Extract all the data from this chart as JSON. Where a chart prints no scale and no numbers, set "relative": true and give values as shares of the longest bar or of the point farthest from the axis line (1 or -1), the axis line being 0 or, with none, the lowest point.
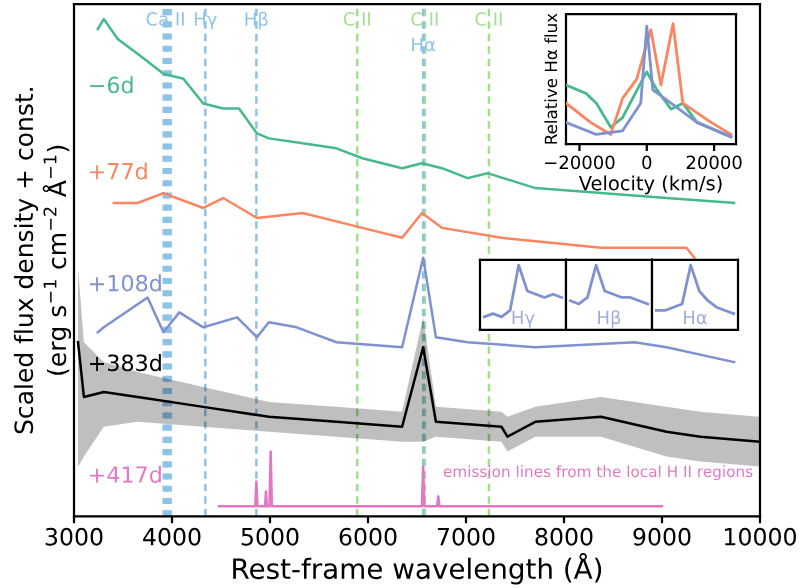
{
  "chart_data": [
    {
      "type": "line",
      "xlabel": "Rest-frame wavelength (Å)",
      "ylabel": "Scaled flux density + const.\n(erg s$^{−1}$ cm$^{−2}$ Å$^{−1}$)",
      "relative": true,
      "tick_labels": "x",
      "xlim": [
        3000,
        10000
      ],
      "xticks": [
        3000,
        4000,
        5000,
        6000,
        7000,
        8000,
        9000,
        10000
      ],
      "series": [
        {
          "name": "−6d",
          "color": "#45b98c",
          "x": [
            3243,
            3304,
            3446,
            3649,
            3913,
            4116,
            4319,
            4522,
            4684,
            4867,
            4988,
            5333,
            5678,
            5942,
            6348,
            6551,
            6754,
            7017,
            7220,
            7707,
            8377,
            9046,
            9736
          ],
          "values": [
            0.98,
            1.0,
            0.96,
            0.93,
            0.89,
            0.88,
            0.83,
            0.82,
            0.82,
            0.77,
            0.76,
            0.75,
            0.74,
            0.72,
            0.7,
            0.71,
            0.7,
            0.68,
            0.69,
            0.66,
            0.65,
            0.64,
            0.63
          ]
        },
        {
          "name": "+77d",
          "color": "#fa8560",
          "x": [
            3406,
            3649,
            3913,
            4319,
            4522,
            4867,
            5333,
            5942,
            6348,
            6551,
            6754,
            7362,
            8377,
            9249,
            9330
          ],
          "values": [
            0.63,
            0.63,
            0.65,
            0.62,
            0.64,
            0.6,
            0.61,
            0.58,
            0.56,
            0.61,
            0.58,
            0.56,
            0.54,
            0.54,
            0.52
          ]
        },
        {
          "name": "+108d",
          "color": "#7f91cf",
          "x": [
            3243,
            3304,
            3751,
            3913,
            4075,
            4319,
            4664,
            4867,
            4988,
            5272,
            5678,
            6348,
            6563,
            6693,
            7017,
            7707,
            8722,
            9046,
            9736
          ],
          "values": [
            0.37,
            0.38,
            0.44,
            0.37,
            0.41,
            0.38,
            0.4,
            0.36,
            0.39,
            0.38,
            0.35,
            0.34,
            0.52,
            0.36,
            0.35,
            0.34,
            0.35,
            0.34,
            0.31
          ]
        },
        {
          "name": "+383d",
          "color": "#000000",
          "x": [
            3041,
            3101,
            3304,
            3649,
            4319,
            4988,
            5678,
            6348,
            6563,
            6693,
            7362,
            7423,
            7707,
            8377,
            9046,
            9391,
            9995
          ],
          "values": [
            0.35,
            0.24,
            0.25,
            0.24,
            0.22,
            0.2,
            0.19,
            0.18,
            0.34,
            0.19,
            0.18,
            0.16,
            0.19,
            0.2,
            0.17,
            0.16,
            0.15
          ],
          "lower": [
            0.1,
            0.12,
            0.18,
            0.19,
            0.18,
            0.17,
            0.16,
            0.15,
            0.15,
            0.16,
            0.15,
            0.13,
            0.16,
            0.16,
            0.12,
            0.11,
            0.1
          ],
          "upper": [
            0.5,
            0.35,
            0.31,
            0.29,
            0.26,
            0.23,
            0.22,
            0.21,
            0.4,
            0.22,
            0.21,
            0.2,
            0.22,
            0.24,
            0.22,
            0.21,
            0.2
          ]
        },
        {
          "name": "+417d",
          "color": "#e377c2",
          "x": [
            4481,
            4850,
            4861,
            4872,
            4950,
            4959,
            4968,
            4995,
            5007,
            5019,
            6550,
            6563,
            6575,
            6705,
            6717,
            6729,
            9000
          ],
          "values": [
            0.02,
            0.02,
            0.07,
            0.02,
            0.02,
            0.05,
            0.02,
            0.02,
            0.13,
            0.02,
            0.02,
            0.1,
            0.02,
            0.02,
            0.04,
            0.02,
            0.02
          ]
        }
      ],
      "ref_lines": [
        {
          "axis": "x",
          "value": 3934,
          "label": "Ca II",
          "color": "#8ec3e8",
          "line_style": "dotted"
        },
        {
          "axis": "x",
          "value": 3968,
          "label": null,
          "color": "#8ec3e8",
          "line_style": "dotted"
        },
        {
          "axis": "x",
          "value": 4340,
          "label": "Hγ",
          "color": "#8ec3e8",
          "line_style": "dashed"
        },
        {
          "axis": "x",
          "value": 4861,
          "label": "Hβ",
          "color": "#8ec3e8",
          "line_style": "dashed"
        },
        {
          "axis": "x",
          "value": 5890,
          "label": "C II",
          "color": "#a3dd8f",
          "line_style": "dashed"
        },
        {
          "axis": "x",
          "value": 6580,
          "label": "C II",
          "color": "#a3dd8f",
          "line_style": "dashed"
        },
        {
          "axis": "x",
          "value": 6563,
          "label": "Hα",
          "color": "#8ec3e8",
          "line_style": "dashed"
        },
        {
          "axis": "x",
          "value": 7234,
          "label": "C II",
          "color": "#a3dd8f",
          "line_style": "dashed"
        }
      ],
      "annotations": [
        "emission lines from the local H II regions"
      ]
    },
    {
      "type": "line",
      "xlabel": "Velocity (km/s)",
      "ylabel": "Relative Hα flux",
      "relative": true,
      "tick_labels": "x",
      "xlim": [
        -24000,
        26500
      ],
      "xticks": [
        {
          "value": -20000,
          "label": "−20000"
        },
        0,
        20000
      ],
      "series": [
        {
          "color": "#45b98c",
          "x": [
            -24000,
            -18000,
            -15000,
            -10700,
            -7200,
            -1200,
            0,
            3000,
            7200,
            10700,
            14900,
            25000
          ],
          "values": [
            0.49,
            0.42,
            0.34,
            0.14,
            0.22,
            0.54,
            0.6,
            0.45,
            0.29,
            0.34,
            0.18,
            0.06
          ]
        },
        {
          "color": "#fa8560",
          "x": [
            -24000,
            -16700,
            -10700,
            -7200,
            -3000,
            1200,
            4200,
            7800,
            10700,
            19100,
            25000
          ],
          "values": [
            0.34,
            0.18,
            0.08,
            0.38,
            0.54,
            0.95,
            0.49,
            1.0,
            0.34,
            0.18,
            0.08
          ]
        },
        {
          "color": "#7f91cf",
          "x": [
            -24000,
            -15000,
            -7200,
            -1800,
            0,
            1800,
            7200,
            14900,
            25000
          ],
          "values": [
            0.18,
            0.08,
            0.11,
            0.34,
            0.98,
            0.45,
            0.34,
            0.18,
            0.06
          ]
        }
      ]
    },
    {
      "type": "line",
      "relative": true,
      "tick_labels": false,
      "categories": [
        null,
        null,
        null,
        null,
        null,
        null,
        null,
        null,
        null,
        null
      ],
      "series": [
        {
          "color": "#7f91cf",
          "values": [
            0.2,
            0.25,
            0.2,
            0.3,
            1.0,
            0.6,
            0.55,
            0.5,
            0.55,
            0.5
          ]
        }
      ],
      "annotations": [
        "Hγ"
      ]
    },
    {
      "type": "line",
      "relative": true,
      "tick_labels": false,
      "categories": [
        null,
        null,
        null,
        null,
        null,
        null,
        null,
        null,
        null,
        null
      ],
      "series": [
        {
          "color": "#7f91cf",
          "values": [
            0.45,
            0.4,
            0.5,
            1.0,
            0.6,
            0.55,
            0.5,
            0.5,
            0.45,
            0.4
          ]
        }
      ],
      "annotations": [
        "Hβ"
      ]
    },
    {
      "type": "line",
      "relative": true,
      "tick_labels": false,
      "categories": [
        null,
        null,
        null,
        null,
        null,
        null,
        null,
        null,
        null,
        null
      ],
      "series": [
        {
          "color": "#7f91cf",
          "values": [
            0.3,
            0.3,
            0.35,
            0.4,
            1.0,
            0.6,
            0.45,
            0.35,
            0.3,
            0.25
          ]
        }
      ],
      "annotations": [
        "Hα"
      ]
    }
  ]
}
